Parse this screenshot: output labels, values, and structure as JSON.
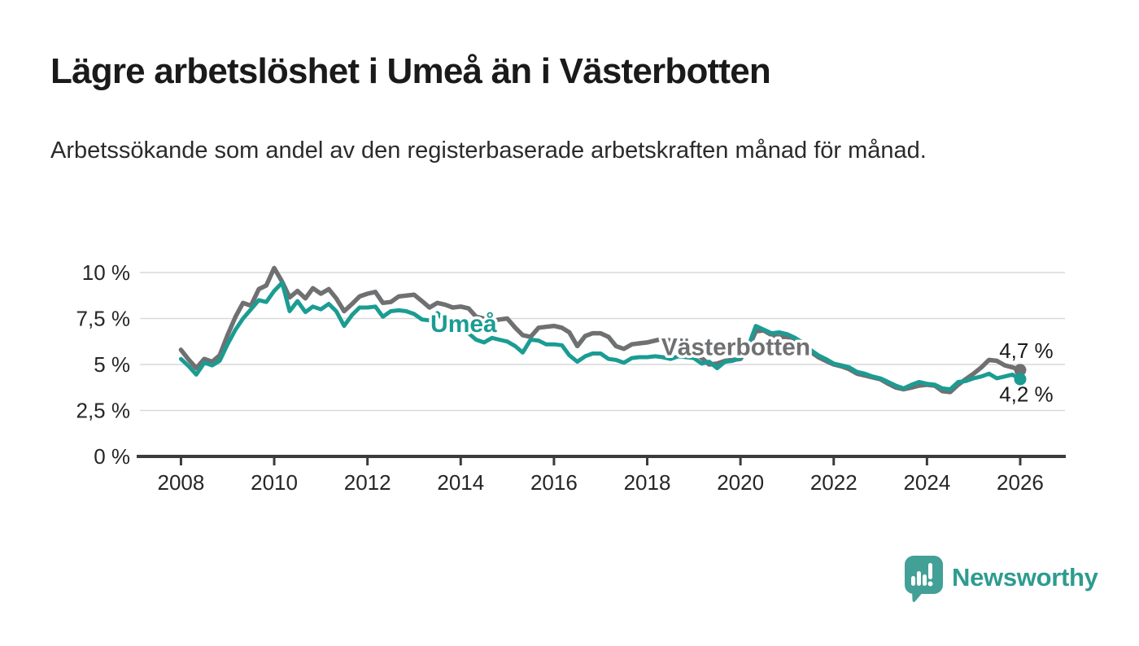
{
  "header": {
    "title": "Lägre arbetslöshet i Umeå än i Västerbotten",
    "subtitle": "Arbetssökande som andel av den registerbaserade arbetskraften månad för månad."
  },
  "footer": {
    "brand": "Newsworthy"
  },
  "colors": {
    "umea": "#1b9c93",
    "vasterbotten": "#6f7072",
    "grid": "#d9d9d9",
    "axis": "#3b3b3b",
    "tick_text": "#262626",
    "end_label_text": "#1a1a1a",
    "logo_bubble": "#42a096",
    "logo_text": "#2e9b90"
  },
  "chart_data": {
    "type": "line",
    "title": "Lägre arbetslöshet i Umeå än i Västerbotten",
    "xlabel": "",
    "ylabel": "",
    "grid": "horizontal",
    "xlim": [
      2007.12,
      2026.96
    ],
    "ylim": [
      0,
      10.4
    ],
    "yticks": [
      {
        "value": 0,
        "label": "0 %"
      },
      {
        "value": 2.5,
        "label": "2,5 %"
      },
      {
        "value": 5,
        "label": "5 %"
      },
      {
        "value": 7.5,
        "label": "7,5 %"
      },
      {
        "value": 10,
        "label": "10 %"
      }
    ],
    "xticks": [
      {
        "value": 2008,
        "label": "2008"
      },
      {
        "value": 2010,
        "label": "2010"
      },
      {
        "value": 2012,
        "label": "2012"
      },
      {
        "value": 2014,
        "label": "2014"
      },
      {
        "value": 2016,
        "label": "2016"
      },
      {
        "value": 2018,
        "label": "2018"
      },
      {
        "value": 2020,
        "label": "2020"
      },
      {
        "value": 2022,
        "label": "2022"
      },
      {
        "value": 2024,
        "label": "2024"
      },
      {
        "value": 2026,
        "label": "2026"
      }
    ],
    "x": [
      2008,
      2008.17,
      2008.33,
      2008.5,
      2008.67,
      2008.83,
      2009,
      2009.17,
      2009.33,
      2009.5,
      2009.67,
      2009.83,
      2010,
      2010.17,
      2010.33,
      2010.5,
      2010.67,
      2010.83,
      2011,
      2011.17,
      2011.33,
      2011.5,
      2011.67,
      2011.83,
      2012,
      2012.17,
      2012.33,
      2012.5,
      2012.67,
      2012.83,
      2013,
      2013.17,
      2013.33,
      2013.5,
      2013.67,
      2013.83,
      2014,
      2014.17,
      2014.33,
      2014.5,
      2014.67,
      2014.83,
      2015,
      2015.17,
      2015.33,
      2015.5,
      2015.67,
      2015.83,
      2016,
      2016.17,
      2016.33,
      2016.5,
      2016.67,
      2016.83,
      2017,
      2017.17,
      2017.33,
      2017.5,
      2017.67,
      2017.83,
      2018,
      2018.17,
      2018.33,
      2018.5,
      2018.67,
      2018.83,
      2019,
      2019.17,
      2019.33,
      2019.5,
      2019.67,
      2019.83,
      2020,
      2020.17,
      2020.33,
      2020.5,
      2020.67,
      2020.83,
      2021,
      2021.17,
      2021.33,
      2021.5,
      2021.67,
      2021.83,
      2022,
      2022.17,
      2022.33,
      2022.5,
      2022.67,
      2022.83,
      2023,
      2023.17,
      2023.33,
      2023.5,
      2023.67,
      2023.83,
      2024,
      2024.17,
      2024.33,
      2024.5,
      2024.67,
      2024.83,
      2025,
      2025.17,
      2025.33,
      2025.5,
      2025.67,
      2025.83,
      2026
    ],
    "series": [
      {
        "name": "Västerbotten",
        "color": "#6f7072",
        "line_width": 5.5,
        "end_value_label": "4,7 %",
        "values": [
          5.8,
          5.25,
          4.8,
          5.3,
          5.15,
          5.5,
          6.6,
          7.6,
          8.35,
          8.2,
          9.1,
          9.3,
          10.25,
          9.5,
          8.65,
          9.0,
          8.6,
          9.15,
          8.85,
          9.1,
          8.6,
          7.9,
          8.3,
          8.7,
          8.85,
          8.95,
          8.35,
          8.4,
          8.7,
          8.75,
          8.8,
          8.45,
          8.1,
          8.35,
          8.25,
          8.1,
          8.15,
          8.05,
          7.6,
          7.5,
          7.35,
          7.45,
          7.5,
          7.0,
          6.6,
          6.5,
          7.0,
          7.05,
          7.1,
          7.0,
          6.75,
          6.0,
          6.55,
          6.7,
          6.7,
          6.5,
          6.0,
          5.85,
          6.1,
          6.15,
          6.2,
          6.3,
          6.4,
          6.3,
          6.1,
          5.9,
          5.7,
          5.35,
          5.0,
          5.05,
          5.2,
          5.25,
          5.3,
          5.9,
          6.8,
          6.85,
          6.6,
          6.5,
          6.5,
          6.35,
          6.1,
          5.7,
          5.4,
          5.2,
          5.0,
          4.9,
          4.75,
          4.5,
          4.4,
          4.3,
          4.2,
          3.95,
          3.75,
          3.65,
          3.75,
          3.85,
          3.9,
          3.85,
          3.55,
          3.5,
          3.9,
          4.2,
          4.5,
          4.85,
          5.25,
          5.2,
          4.95,
          4.85,
          4.7
        ]
      },
      {
        "name": "Umeå",
        "color": "#1b9c93",
        "line_width": 5,
        "end_value_label": "4,2 %",
        "values": [
          5.3,
          4.9,
          4.45,
          5.1,
          4.95,
          5.2,
          6.1,
          6.9,
          7.5,
          8.0,
          8.5,
          8.4,
          9.0,
          9.45,
          7.9,
          8.45,
          7.85,
          8.15,
          8.0,
          8.3,
          7.9,
          7.1,
          7.7,
          8.1,
          8.1,
          8.15,
          7.6,
          7.9,
          7.95,
          7.9,
          7.75,
          7.45,
          7.4,
          7.8,
          7.35,
          7.1,
          6.9,
          6.7,
          6.35,
          6.2,
          6.45,
          6.35,
          6.25,
          6.0,
          5.65,
          6.35,
          6.3,
          6.1,
          6.1,
          6.05,
          5.5,
          5.15,
          5.45,
          5.6,
          5.6,
          5.3,
          5.25,
          5.1,
          5.35,
          5.4,
          5.4,
          5.45,
          5.4,
          5.3,
          5.45,
          5.4,
          5.35,
          5.05,
          5.15,
          4.8,
          5.15,
          5.2,
          5.35,
          6.0,
          7.1,
          6.9,
          6.7,
          6.75,
          6.65,
          6.45,
          6.2,
          5.8,
          5.5,
          5.3,
          5.05,
          4.95,
          4.85,
          4.6,
          4.5,
          4.35,
          4.25,
          4.05,
          3.85,
          3.7,
          3.9,
          4.05,
          3.95,
          3.9,
          3.7,
          3.65,
          4.05,
          4.1,
          4.25,
          4.35,
          4.5,
          4.25,
          4.35,
          4.45,
          4.2
        ]
      }
    ],
    "series_labels": [
      {
        "text": "Umeå",
        "color": "#1b9c93",
        "x": 2013.35,
        "value": 6.78
      },
      {
        "text": "Västerbotten",
        "color": "#6f7072",
        "x": 2018.3,
        "value": 5.52
      }
    ],
    "end_labels": [
      {
        "text": "4,7 %",
        "series": "Västerbotten",
        "x": 2025.55,
        "value": 5.35
      },
      {
        "text": "4,2 %",
        "series": "Umeå",
        "x": 2025.55,
        "value": 2.98
      }
    ],
    "legend_position": "inline-labels"
  }
}
